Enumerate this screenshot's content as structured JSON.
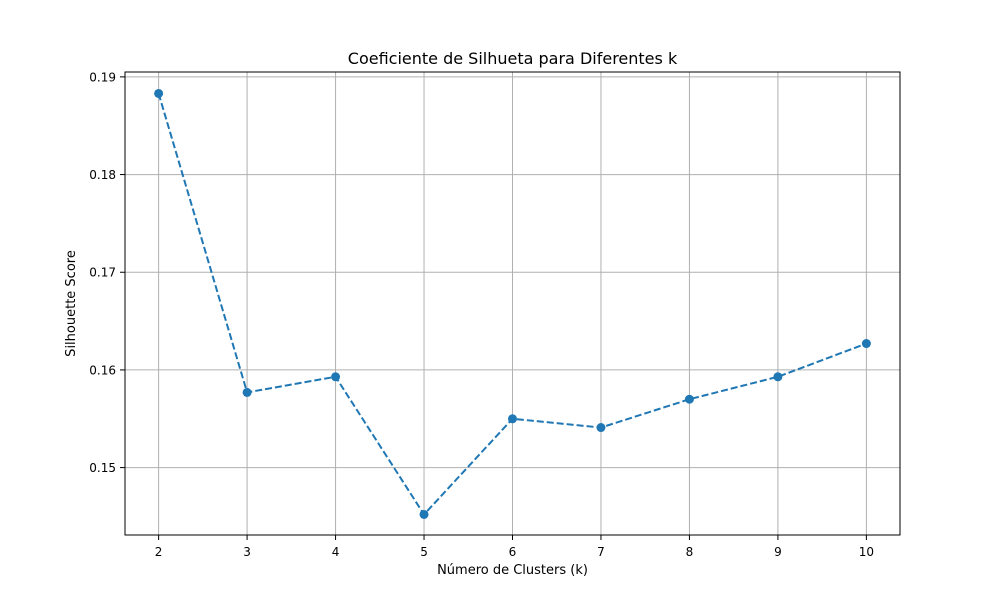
{
  "chart_data": {
    "type": "line",
    "title": "Coeficiente de Silhueta para Diferentes k",
    "xlabel": "Número de Clusters (k)",
    "ylabel": "Silhouette Score",
    "x": [
      2,
      3,
      4,
      5,
      6,
      7,
      8,
      9,
      10
    ],
    "series": [
      {
        "values": [
          0.1883,
          0.1577,
          0.1593,
          0.1452,
          0.155,
          0.1541,
          0.157,
          0.1593,
          0.1627
        ],
        "color": "#1f77b4",
        "line_style": "dashed",
        "marker": "circle"
      }
    ],
    "xlim": [
      1.62,
      10.38
    ],
    "ylim": [
      0.1431,
      0.1905
    ],
    "xticks": [
      "2",
      "3",
      "4",
      "5",
      "6",
      "7",
      "8",
      "9",
      "10"
    ],
    "xtick_values": [
      2,
      3,
      4,
      5,
      6,
      7,
      8,
      9,
      10
    ],
    "yticks": [
      "0.15",
      "0.16",
      "0.17",
      "0.18",
      "0.19"
    ],
    "ytick_values": [
      0.15,
      0.16,
      0.17,
      0.18,
      0.19
    ],
    "grid": true
  }
}
